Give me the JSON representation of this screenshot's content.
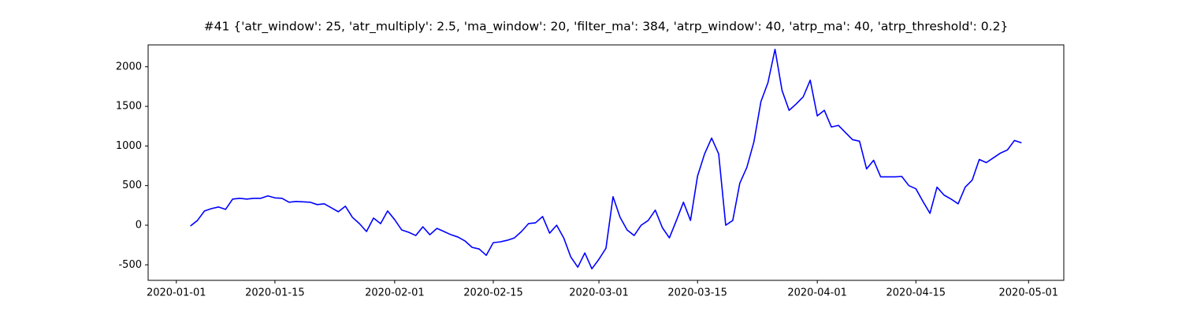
{
  "chart_data": {
    "type": "line",
    "title": "#41 {'atr_window': 25, 'atr_multiply': 2.5, 'ma_window': 20, 'filter_ma': 384, 'atrp_window': 40, 'atrp_ma': 40, 'atrp_threshold': 0.2}",
    "x": [
      "2020-01-03",
      "2020-01-04",
      "2020-01-05",
      "2020-01-06",
      "2020-01-07",
      "2020-01-08",
      "2020-01-09",
      "2020-01-10",
      "2020-01-11",
      "2020-01-12",
      "2020-01-13",
      "2020-01-14",
      "2020-01-15",
      "2020-01-16",
      "2020-01-17",
      "2020-01-18",
      "2020-01-19",
      "2020-01-20",
      "2020-01-21",
      "2020-01-22",
      "2020-01-23",
      "2020-01-24",
      "2020-01-25",
      "2020-01-26",
      "2020-01-27",
      "2020-01-28",
      "2020-01-29",
      "2020-01-30",
      "2020-01-31",
      "2020-02-01",
      "2020-02-02",
      "2020-02-03",
      "2020-02-04",
      "2020-02-05",
      "2020-02-06",
      "2020-02-07",
      "2020-02-08",
      "2020-02-09",
      "2020-02-10",
      "2020-02-11",
      "2020-02-12",
      "2020-02-13",
      "2020-02-14",
      "2020-02-15",
      "2020-02-16",
      "2020-02-17",
      "2020-02-18",
      "2020-02-19",
      "2020-02-20",
      "2020-02-21",
      "2020-02-22",
      "2020-02-23",
      "2020-02-24",
      "2020-02-25",
      "2020-02-26",
      "2020-02-27",
      "2020-02-28",
      "2020-02-29",
      "2020-03-01",
      "2020-03-02",
      "2020-03-03",
      "2020-03-04",
      "2020-03-05",
      "2020-03-06",
      "2020-03-07",
      "2020-03-08",
      "2020-03-09",
      "2020-03-10",
      "2020-03-11",
      "2020-03-12",
      "2020-03-13",
      "2020-03-14",
      "2020-03-15",
      "2020-03-16",
      "2020-03-17",
      "2020-03-18",
      "2020-03-19",
      "2020-03-20",
      "2020-03-21",
      "2020-03-22",
      "2020-03-23",
      "2020-03-24",
      "2020-03-25",
      "2020-03-26",
      "2020-03-27",
      "2020-03-28",
      "2020-03-29",
      "2020-03-30",
      "2020-03-31",
      "2020-04-01",
      "2020-04-02",
      "2020-04-03",
      "2020-04-04",
      "2020-04-05",
      "2020-04-06",
      "2020-04-07",
      "2020-04-08",
      "2020-04-09",
      "2020-04-10",
      "2020-04-11",
      "2020-04-12",
      "2020-04-13",
      "2020-04-14",
      "2020-04-15",
      "2020-04-16",
      "2020-04-17",
      "2020-04-18",
      "2020-04-19",
      "2020-04-20",
      "2020-04-21",
      "2020-04-22",
      "2020-04-23",
      "2020-04-24",
      "2020-04-25",
      "2020-04-26",
      "2020-04-27",
      "2020-04-28",
      "2020-04-29",
      "2020-04-30"
    ],
    "values": [
      -10,
      60,
      180,
      210,
      230,
      200,
      330,
      340,
      330,
      340,
      340,
      370,
      345,
      340,
      290,
      300,
      295,
      290,
      260,
      270,
      220,
      170,
      240,
      100,
      20,
      -80,
      90,
      20,
      180,
      70,
      -60,
      -90,
      -130,
      -20,
      -120,
      -40,
      -80,
      -120,
      -150,
      -200,
      -280,
      -300,
      -380,
      -220,
      -210,
      -190,
      -160,
      -80,
      20,
      30,
      110,
      -100,
      0,
      -160,
      -400,
      -530,
      -350,
      -550,
      -430,
      -290,
      360,
      100,
      -60,
      -130,
      0,
      60,
      190,
      -30,
      -160,
      60,
      290,
      60,
      620,
      900,
      1100,
      900,
      0,
      60,
      530,
      730,
      1050,
      1560,
      1800,
      2220,
      1700,
      1450,
      1530,
      1620,
      1830,
      1380,
      1450,
      1240,
      1260,
      1170,
      1080,
      1060,
      710,
      820,
      610,
      610,
      610,
      615,
      500,
      460,
      300,
      150,
      480,
      380,
      330,
      270,
      480,
      570,
      830,
      790,
      850,
      910,
      950,
      1070,
      1040
    ],
    "color": "#0000ff",
    "xlim": [
      "2019-12-28",
      "2020-05-06"
    ],
    "xticks": [
      "2020-01-01",
      "2020-01-15",
      "2020-02-01",
      "2020-02-15",
      "2020-03-01",
      "2020-03-15",
      "2020-04-01",
      "2020-04-15",
      "2020-05-01"
    ],
    "ylim": [
      -696,
      2276
    ],
    "yticks": [
      -500,
      0,
      500,
      1000,
      1500,
      2000
    ],
    "grid": false
  }
}
